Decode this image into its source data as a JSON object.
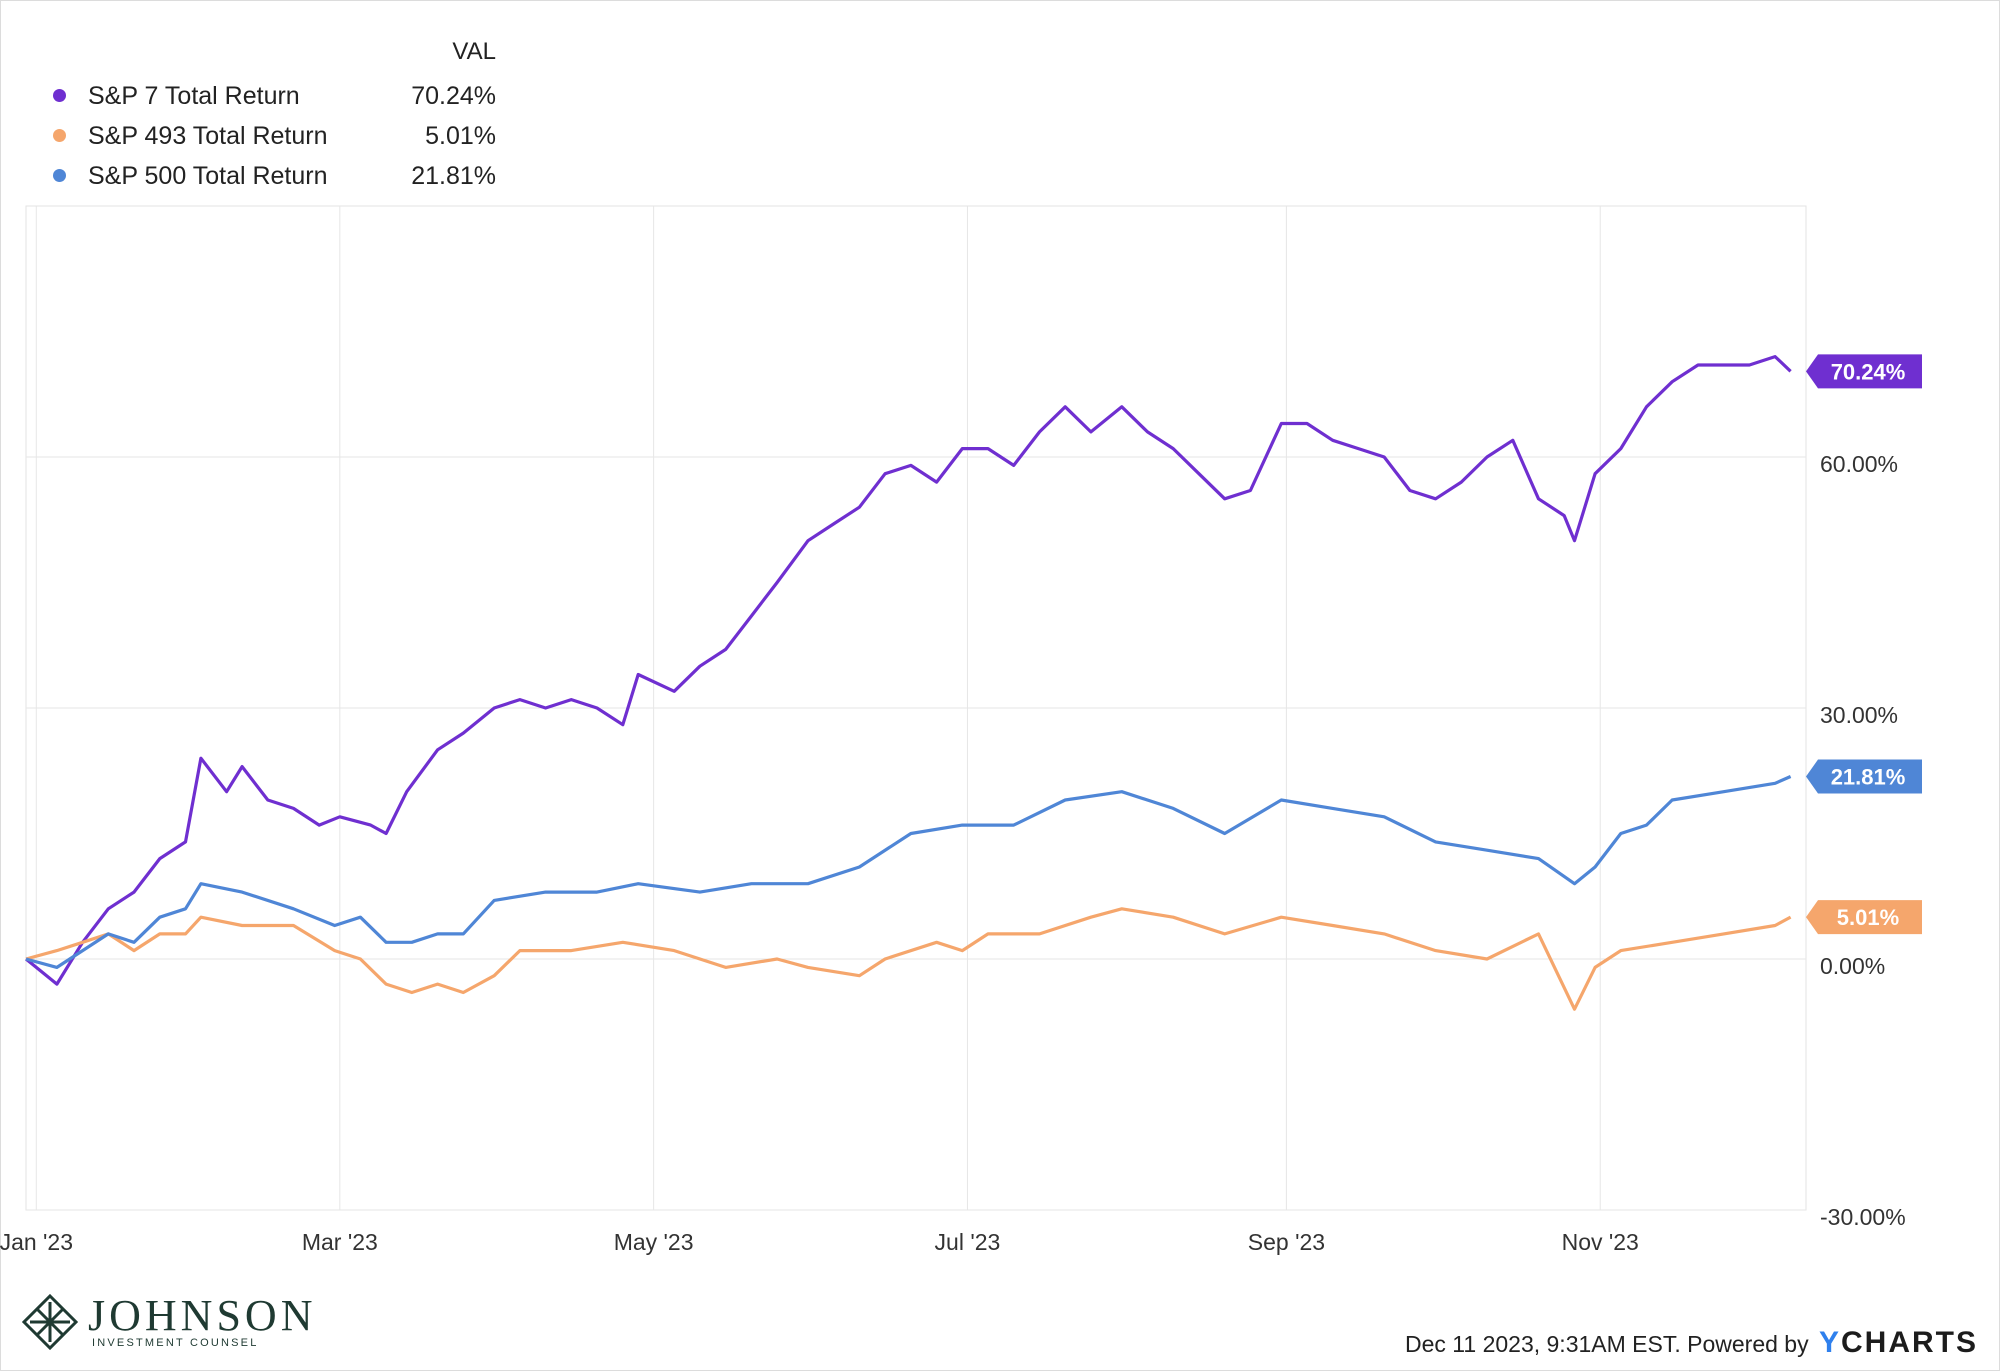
{
  "legend": {
    "header": "VAL",
    "items": [
      {
        "name": "S&P 7 Total Return",
        "value": "70.24%",
        "color": "#6f2fd0"
      },
      {
        "name": "S&P 493 Total Return",
        "value": "5.01%",
        "color": "#f5a66c"
      },
      {
        "name": "S&P 500 Total Return",
        "value": "21.81%",
        "color": "#4f86d6"
      }
    ]
  },
  "chart_data": {
    "type": "line",
    "x_tick_labels": [
      "Jan '23",
      "Mar '23",
      "May '23",
      "Jul '23",
      "Sep '23",
      "Nov '23"
    ],
    "x_tick_dates": [
      "2023-01-01",
      "2023-03-01",
      "2023-05-01",
      "2023-07-01",
      "2023-09-01",
      "2023-11-01"
    ],
    "x_range": [
      "2022-12-30",
      "2023-12-11"
    ],
    "y_ticks": [
      {
        "value": 60,
        "label": "60.00%"
      },
      {
        "value": 30,
        "label": "30.00%"
      },
      {
        "value": 0,
        "label": "0.00%"
      },
      {
        "value": -30,
        "label": "-30.00%"
      }
    ],
    "ylim": [
      -30,
      90
    ],
    "grid": true,
    "end_labels": [
      {
        "series": 0,
        "text": "70.24%"
      },
      {
        "series": 2,
        "text": "21.81%"
      },
      {
        "series": 1,
        "text": "5.01%"
      }
    ],
    "series": [
      {
        "name": "S&P 7 Total Return",
        "color": "#6f2fd0",
        "points": [
          [
            "2022-12-30",
            0
          ],
          [
            "2023-01-05",
            -3
          ],
          [
            "2023-01-10",
            2
          ],
          [
            "2023-01-15",
            6
          ],
          [
            "2023-01-20",
            8
          ],
          [
            "2023-01-25",
            12
          ],
          [
            "2023-01-30",
            14
          ],
          [
            "2023-02-02",
            24
          ],
          [
            "2023-02-07",
            20
          ],
          [
            "2023-02-10",
            23
          ],
          [
            "2023-02-15",
            19
          ],
          [
            "2023-02-20",
            18
          ],
          [
            "2023-02-25",
            16
          ],
          [
            "2023-03-01",
            17
          ],
          [
            "2023-03-07",
            16
          ],
          [
            "2023-03-10",
            15
          ],
          [
            "2023-03-14",
            20
          ],
          [
            "2023-03-20",
            25
          ],
          [
            "2023-03-25",
            27
          ],
          [
            "2023-03-31",
            30
          ],
          [
            "2023-04-05",
            31
          ],
          [
            "2023-04-10",
            30
          ],
          [
            "2023-04-15",
            31
          ],
          [
            "2023-04-20",
            30
          ],
          [
            "2023-04-25",
            28
          ],
          [
            "2023-04-28",
            34
          ],
          [
            "2023-05-05",
            32
          ],
          [
            "2023-05-10",
            35
          ],
          [
            "2023-05-15",
            37
          ],
          [
            "2023-05-20",
            41
          ],
          [
            "2023-05-25",
            45
          ],
          [
            "2023-05-31",
            50
          ],
          [
            "2023-06-05",
            52
          ],
          [
            "2023-06-10",
            54
          ],
          [
            "2023-06-15",
            58
          ],
          [
            "2023-06-20",
            59
          ],
          [
            "2023-06-25",
            57
          ],
          [
            "2023-06-30",
            61
          ],
          [
            "2023-07-05",
            61
          ],
          [
            "2023-07-10",
            59
          ],
          [
            "2023-07-15",
            63
          ],
          [
            "2023-07-20",
            66
          ],
          [
            "2023-07-25",
            63
          ],
          [
            "2023-07-31",
            66
          ],
          [
            "2023-08-05",
            63
          ],
          [
            "2023-08-10",
            61
          ],
          [
            "2023-08-15",
            58
          ],
          [
            "2023-08-20",
            55
          ],
          [
            "2023-08-25",
            56
          ],
          [
            "2023-08-31",
            64
          ],
          [
            "2023-09-05",
            64
          ],
          [
            "2023-09-10",
            62
          ],
          [
            "2023-09-15",
            61
          ],
          [
            "2023-09-20",
            60
          ],
          [
            "2023-09-25",
            56
          ],
          [
            "2023-09-30",
            55
          ],
          [
            "2023-10-05",
            57
          ],
          [
            "2023-10-10",
            60
          ],
          [
            "2023-10-15",
            62
          ],
          [
            "2023-10-20",
            55
          ],
          [
            "2023-10-25",
            53
          ],
          [
            "2023-10-27",
            50
          ],
          [
            "2023-10-31",
            58
          ],
          [
            "2023-11-05",
            61
          ],
          [
            "2023-11-10",
            66
          ],
          [
            "2023-11-15",
            69
          ],
          [
            "2023-11-20",
            71
          ],
          [
            "2023-11-25",
            71
          ],
          [
            "2023-11-30",
            71
          ],
          [
            "2023-12-05",
            72
          ],
          [
            "2023-12-08",
            70.24
          ]
        ]
      },
      {
        "name": "S&P 493 Total Return",
        "color": "#f5a66c",
        "points": [
          [
            "2022-12-30",
            0
          ],
          [
            "2023-01-05",
            1
          ],
          [
            "2023-01-10",
            2
          ],
          [
            "2023-01-15",
            3
          ],
          [
            "2023-01-20",
            1
          ],
          [
            "2023-01-25",
            3
          ],
          [
            "2023-01-30",
            3
          ],
          [
            "2023-02-02",
            5
          ],
          [
            "2023-02-10",
            4
          ],
          [
            "2023-02-20",
            4
          ],
          [
            "2023-02-28",
            1
          ],
          [
            "2023-03-05",
            0
          ],
          [
            "2023-03-10",
            -3
          ],
          [
            "2023-03-15",
            -4
          ],
          [
            "2023-03-20",
            -3
          ],
          [
            "2023-03-25",
            -4
          ],
          [
            "2023-03-31",
            -2
          ],
          [
            "2023-04-05",
            1
          ],
          [
            "2023-04-15",
            1
          ],
          [
            "2023-04-25",
            2
          ],
          [
            "2023-05-05",
            1
          ],
          [
            "2023-05-15",
            -1
          ],
          [
            "2023-05-25",
            0
          ],
          [
            "2023-05-31",
            -1
          ],
          [
            "2023-06-10",
            -2
          ],
          [
            "2023-06-15",
            0
          ],
          [
            "2023-06-25",
            2
          ],
          [
            "2023-06-30",
            1
          ],
          [
            "2023-07-05",
            3
          ],
          [
            "2023-07-15",
            3
          ],
          [
            "2023-07-25",
            5
          ],
          [
            "2023-07-31",
            6
          ],
          [
            "2023-08-10",
            5
          ],
          [
            "2023-08-20",
            3
          ],
          [
            "2023-08-31",
            5
          ],
          [
            "2023-09-10",
            4
          ],
          [
            "2023-09-20",
            3
          ],
          [
            "2023-09-30",
            1
          ],
          [
            "2023-10-10",
            0
          ],
          [
            "2023-10-20",
            3
          ],
          [
            "2023-10-27",
            -6
          ],
          [
            "2023-10-31",
            -1
          ],
          [
            "2023-11-05",
            1
          ],
          [
            "2023-11-15",
            2
          ],
          [
            "2023-11-25",
            3
          ],
          [
            "2023-12-05",
            4
          ],
          [
            "2023-12-08",
            5.01
          ]
        ]
      },
      {
        "name": "S&P 500 Total Return",
        "color": "#4f86d6",
        "points": [
          [
            "2022-12-30",
            0
          ],
          [
            "2023-01-05",
            -1
          ],
          [
            "2023-01-10",
            1
          ],
          [
            "2023-01-15",
            3
          ],
          [
            "2023-01-20",
            2
          ],
          [
            "2023-01-25",
            5
          ],
          [
            "2023-01-30",
            6
          ],
          [
            "2023-02-02",
            9
          ],
          [
            "2023-02-10",
            8
          ],
          [
            "2023-02-20",
            6
          ],
          [
            "2023-02-28",
            4
          ],
          [
            "2023-03-05",
            5
          ],
          [
            "2023-03-10",
            2
          ],
          [
            "2023-03-15",
            2
          ],
          [
            "2023-03-20",
            3
          ],
          [
            "2023-03-25",
            3
          ],
          [
            "2023-03-31",
            7
          ],
          [
            "2023-04-10",
            8
          ],
          [
            "2023-04-20",
            8
          ],
          [
            "2023-04-28",
            9
          ],
          [
            "2023-05-10",
            8
          ],
          [
            "2023-05-20",
            9
          ],
          [
            "2023-05-31",
            9
          ],
          [
            "2023-06-10",
            11
          ],
          [
            "2023-06-20",
            15
          ],
          [
            "2023-06-30",
            16
          ],
          [
            "2023-07-10",
            16
          ],
          [
            "2023-07-20",
            19
          ],
          [
            "2023-07-31",
            20
          ],
          [
            "2023-08-10",
            18
          ],
          [
            "2023-08-20",
            15
          ],
          [
            "2023-08-31",
            19
          ],
          [
            "2023-09-10",
            18
          ],
          [
            "2023-09-20",
            17
          ],
          [
            "2023-09-30",
            14
          ],
          [
            "2023-10-10",
            13
          ],
          [
            "2023-10-20",
            12
          ],
          [
            "2023-10-27",
            9
          ],
          [
            "2023-10-31",
            11
          ],
          [
            "2023-11-05",
            15
          ],
          [
            "2023-11-10",
            16
          ],
          [
            "2023-11-15",
            19
          ],
          [
            "2023-11-25",
            20
          ],
          [
            "2023-12-05",
            21
          ],
          [
            "2023-12-08",
            21.81
          ]
        ]
      }
    ]
  },
  "footer": {
    "logo_name": "JOHNSON",
    "logo_sub": "INVESTMENT COUNSEL",
    "timestamp": "Dec 11 2023, 9:31AM EST. Powered by",
    "brand_y": "Y",
    "brand_rest": "CHARTS"
  }
}
